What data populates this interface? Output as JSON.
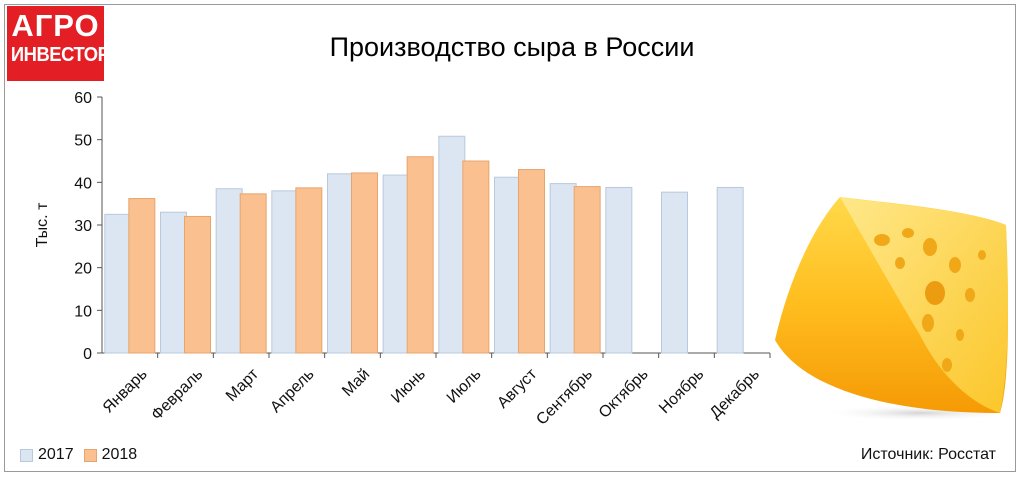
{
  "logo": {
    "line1": "АГРО",
    "line2": "ИНВЕСТОР"
  },
  "chart_data": {
    "type": "bar",
    "title": "Производство сыра в России",
    "ylabel": "Тыс. т",
    "xlabel": "",
    "ylim": [
      0,
      60
    ],
    "yticks": [
      0,
      10,
      20,
      30,
      40,
      50,
      60
    ],
    "grid": false,
    "legend_position": "bottom-left",
    "categories": [
      "Январь",
      "Февраль",
      "Март",
      "Апрель",
      "Май",
      "Июнь",
      "Июль",
      "Август",
      "Сентябрь",
      "Октябрь",
      "Ноябрь",
      "Декабрь"
    ],
    "series": [
      {
        "name": "2017",
        "color": "#dce6f2",
        "stroke": "#b9c9dd",
        "values": [
          32.5,
          33.0,
          38.5,
          38.0,
          42.0,
          41.7,
          50.8,
          41.2,
          39.7,
          38.8,
          37.7,
          38.8
        ]
      },
      {
        "name": "2018",
        "color": "#fac090",
        "stroke": "#e8a46c",
        "values": [
          36.2,
          32.0,
          37.3,
          38.7,
          42.2,
          46.0,
          45.0,
          43.0,
          39.0,
          null,
          null,
          null
        ]
      }
    ]
  },
  "source": "Источник: Росстат",
  "image": {
    "icon": "cheese-icon"
  }
}
